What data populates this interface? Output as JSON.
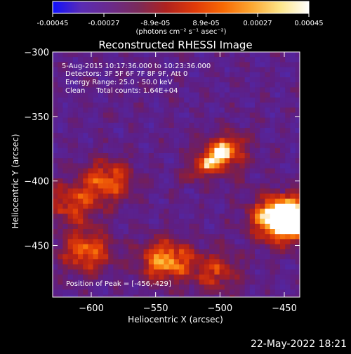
{
  "colorbar": {
    "tick_labels": [
      "-0.00045",
      "-0.00027",
      "-8.9e-05",
      "8.9e-05",
      "0.00027",
      "0.00045"
    ],
    "tick_values": [
      -0.00045,
      -0.00027,
      -8.9e-05,
      8.9e-05,
      0.00027,
      0.00045
    ],
    "range": [
      -0.00045,
      0.00045
    ],
    "units_label": "(photons cm⁻² s⁻¹ asec⁻²)",
    "gradient_colors": [
      "#1010ff",
      "#5a2cb4",
      "#6a2a8c",
      "#7a2a5a",
      "#b0221e",
      "#e03a08",
      "#f86a04",
      "#fca832",
      "#fde68a",
      "#ffffff"
    ]
  },
  "chart_data": {
    "type": "heatmap",
    "title": "Reconstructed RHESSI Image",
    "xlabel": "Heliocentric X (arcsec)",
    "ylabel": "Heliocentric Y (arcsec)",
    "xlim": [
      -630,
      -438
    ],
    "ylim": [
      -490,
      -300
    ],
    "xticks": [
      -600,
      -550,
      -500,
      -450
    ],
    "xtick_labels": [
      "−600",
      "−550",
      "−500",
      "−450"
    ],
    "yticks": [
      -300,
      -350,
      -400,
      -450
    ],
    "ytick_labels": [
      "−300",
      "−350",
      "−400",
      "−450"
    ],
    "sources": [
      {
        "x": -498,
        "y": -380,
        "intensity": 0.62
      },
      {
        "x": -440,
        "y": -430,
        "intensity": 1.0
      },
      {
        "x": -456,
        "y": -429,
        "intensity": 1.0
      },
      {
        "x": -542,
        "y": -462,
        "intensity": 0.85
      },
      {
        "x": -588,
        "y": -400,
        "intensity": 0.7
      },
      {
        "x": -604,
        "y": -455,
        "intensity": 0.7
      },
      {
        "x": -615,
        "y": -418,
        "intensity": 0.55
      },
      {
        "x": -503,
        "y": -470,
        "intensity": 0.5
      }
    ],
    "annotations": [
      "5-Aug-2015 10:17:36.000 to 10:23:36.000",
      "Detectors: 3F 5F 6F 7F 8F 9F, Att 0",
      "Energy Range: 25.0 - 50.0 keV",
      "Clean     Total counts: 1.64E+04"
    ],
    "peak_label": "Position of Peak = [-456,-429]"
  },
  "footer": {
    "date": "22-May-2022 18:21"
  }
}
